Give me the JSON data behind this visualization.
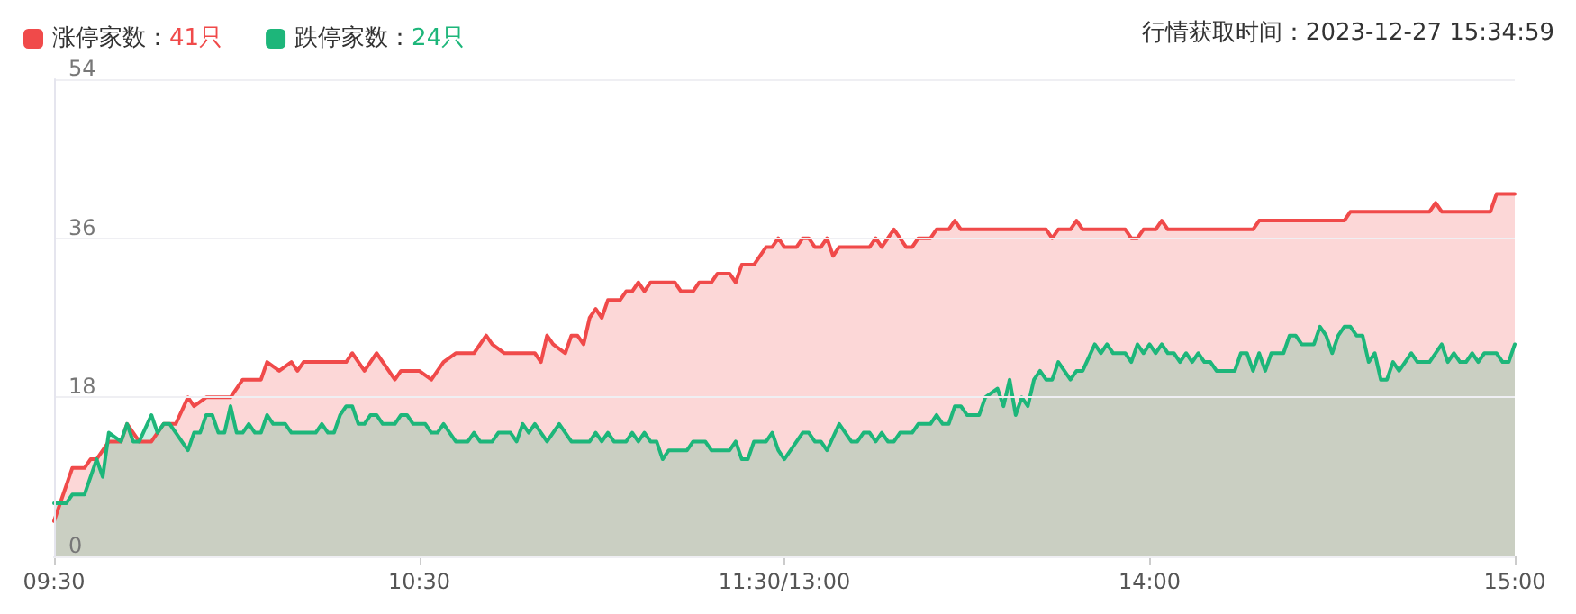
{
  "chart_data": {
    "type": "area",
    "subtitle": "行情获取时间：2023-12-27 15:34:59",
    "categories": [
      "09:30",
      null,
      null,
      null,
      null,
      null,
      null,
      null,
      null,
      null,
      null,
      null,
      null,
      null,
      null,
      null,
      null,
      null,
      null,
      null,
      null,
      null,
      null,
      null,
      null,
      null,
      null,
      null,
      null,
      null,
      null,
      null,
      null,
      null,
      null,
      null,
      null,
      null,
      null,
      null,
      null,
      null,
      null,
      null,
      null,
      null,
      null,
      null,
      null,
      null,
      null,
      null,
      null,
      null,
      null,
      null,
      null,
      null,
      null,
      null,
      "10:30",
      null,
      null,
      null,
      null,
      null,
      null,
      null,
      null,
      null,
      null,
      null,
      null,
      null,
      null,
      null,
      null,
      null,
      null,
      null,
      null,
      null,
      null,
      null,
      null,
      null,
      null,
      null,
      null,
      null,
      null,
      null,
      null,
      null,
      null,
      null,
      null,
      null,
      null,
      null,
      null,
      null,
      null,
      null,
      null,
      null,
      null,
      null,
      null,
      null,
      null,
      null,
      null,
      null,
      null,
      null,
      null,
      null,
      null,
      null,
      "11:30/13:00",
      null,
      null,
      null,
      null,
      null,
      null,
      null,
      null,
      null,
      null,
      null,
      null,
      null,
      null,
      null,
      null,
      null,
      null,
      null,
      null,
      null,
      null,
      null,
      null,
      null,
      null,
      null,
      null,
      null,
      null,
      null,
      null,
      null,
      null,
      null,
      null,
      null,
      null,
      null,
      null,
      null,
      null,
      null,
      null,
      null,
      null,
      null,
      null,
      null,
      null,
      null,
      null,
      null,
      null,
      null,
      null,
      null,
      null,
      null,
      "14:00",
      null,
      null,
      null,
      null,
      null,
      null,
      null,
      null,
      null,
      null,
      null,
      null,
      null,
      null,
      null,
      null,
      null,
      null,
      null,
      null,
      null,
      null,
      null,
      null,
      null,
      null,
      null,
      null,
      null,
      null,
      null,
      null,
      null,
      null,
      null,
      null,
      null,
      null,
      null,
      null,
      null,
      null,
      null,
      null,
      null,
      null,
      null,
      null,
      null,
      null,
      null,
      null,
      null,
      null,
      null,
      null,
      null,
      null,
      null,
      "15:00"
    ],
    "ylim": [
      0,
      54
    ],
    "yticks": [
      0,
      18,
      36,
      54
    ],
    "grid": "y",
    "legend": "top left",
    "line_style": "solid",
    "series": [
      {
        "name": "涨停家数：41只",
        "color": "#f04a4a",
        "values": [
          4,
          null,
          null,
          10,
          null,
          10,
          11,
          11,
          null,
          13,
          null,
          13,
          15,
          null,
          13,
          null,
          13,
          null,
          15,
          null,
          15,
          null,
          18,
          17,
          null,
          18,
          null,
          null,
          null,
          18,
          null,
          20,
          null,
          null,
          20,
          22,
          null,
          21,
          null,
          22,
          21,
          22,
          null,
          null,
          null,
          null,
          null,
          null,
          22,
          23,
          null,
          21,
          null,
          23,
          null,
          null,
          20,
          21,
          null,
          null,
          21,
          null,
          20,
          null,
          22,
          null,
          23,
          null,
          null,
          23,
          null,
          25,
          24,
          null,
          23,
          null,
          null,
          null,
          null,
          23,
          22,
          25,
          24,
          null,
          23,
          25,
          25,
          24,
          27,
          28,
          27,
          29,
          null,
          29,
          30,
          30,
          31,
          30,
          31,
          null,
          null,
          null,
          31,
          30,
          null,
          30,
          31,
          null,
          31,
          32,
          null,
          32,
          31,
          33,
          null,
          33,
          null,
          35,
          35,
          36,
          35,
          null,
          35,
          36,
          36,
          35,
          35,
          36,
          34,
          35,
          null,
          null,
          null,
          null,
          35,
          36,
          35,
          null,
          37,
          null,
          35,
          35,
          36,
          null,
          36,
          37,
          null,
          37,
          38,
          37,
          null,
          null,
          null,
          null,
          null,
          null,
          null,
          null,
          null,
          null,
          null,
          null,
          null,
          37,
          36,
          37,
          null,
          37,
          38,
          37,
          null,
          null,
          null,
          null,
          null,
          null,
          37,
          36,
          36,
          37,
          null,
          37,
          38,
          37,
          null,
          null,
          null,
          null,
          null,
          null,
          null,
          null,
          null,
          null,
          null,
          null,
          null,
          37,
          38,
          null,
          null,
          null,
          null,
          null,
          null,
          null,
          null,
          null,
          null,
          null,
          null,
          null,
          38,
          39,
          null,
          null,
          null,
          null,
          null,
          null,
          null,
          null,
          null,
          null,
          null,
          null,
          39,
          40,
          39,
          null,
          null,
          null,
          null,
          null,
          null,
          null,
          39,
          41,
          null,
          null,
          41
        ]
      },
      {
        "name": "跌停家数：24只",
        "color": "#1db67a",
        "values": [
          6,
          null,
          6,
          7,
          null,
          7,
          null,
          11,
          9,
          14,
          null,
          13,
          15,
          13,
          13,
          null,
          16,
          14,
          15,
          15,
          null,
          null,
          12,
          14,
          14,
          16,
          16,
          14,
          14,
          17,
          14,
          14,
          15,
          14,
          14,
          16,
          15,
          null,
          15,
          14,
          null,
          null,
          null,
          14,
          15,
          14,
          14,
          16,
          17,
          17,
          15,
          15,
          16,
          16,
          15,
          null,
          15,
          16,
          16,
          15,
          null,
          15,
          14,
          14,
          15,
          null,
          13,
          null,
          13,
          14,
          13,
          null,
          13,
          14,
          null,
          14,
          13,
          15,
          14,
          15,
          14,
          13,
          null,
          15,
          null,
          13,
          null,
          null,
          13,
          14,
          13,
          14,
          13,
          null,
          13,
          14,
          13,
          14,
          13,
          13,
          11,
          12,
          null,
          null,
          12,
          13,
          null,
          13,
          12,
          null,
          null,
          12,
          13,
          11,
          11,
          13,
          null,
          13,
          14,
          12,
          11,
          null,
          null,
          14,
          14,
          13,
          13,
          12,
          null,
          15,
          null,
          13,
          13,
          14,
          14,
          13,
          14,
          13,
          13,
          14,
          null,
          14,
          15,
          null,
          15,
          16,
          15,
          15,
          17,
          17,
          16,
          null,
          16,
          18,
          null,
          19,
          17,
          20,
          16,
          18,
          17,
          20,
          21,
          20,
          20,
          22,
          null,
          20,
          21,
          21,
          null,
          24,
          23,
          24,
          23,
          null,
          23,
          22,
          24,
          23,
          24,
          23,
          24,
          23,
          23,
          22,
          23,
          22,
          23,
          22,
          22,
          21,
          null,
          null,
          21,
          23,
          23,
          21,
          23,
          21,
          23,
          null,
          23,
          25,
          25,
          24,
          null,
          24,
          26,
          25,
          23,
          25,
          26,
          26,
          25,
          25,
          22,
          23,
          20,
          20,
          22,
          21,
          null,
          23,
          22,
          null,
          22,
          null,
          24,
          22,
          23,
          22,
          22,
          23,
          22,
          23,
          null,
          23,
          22,
          22,
          24
        ]
      }
    ]
  }
}
